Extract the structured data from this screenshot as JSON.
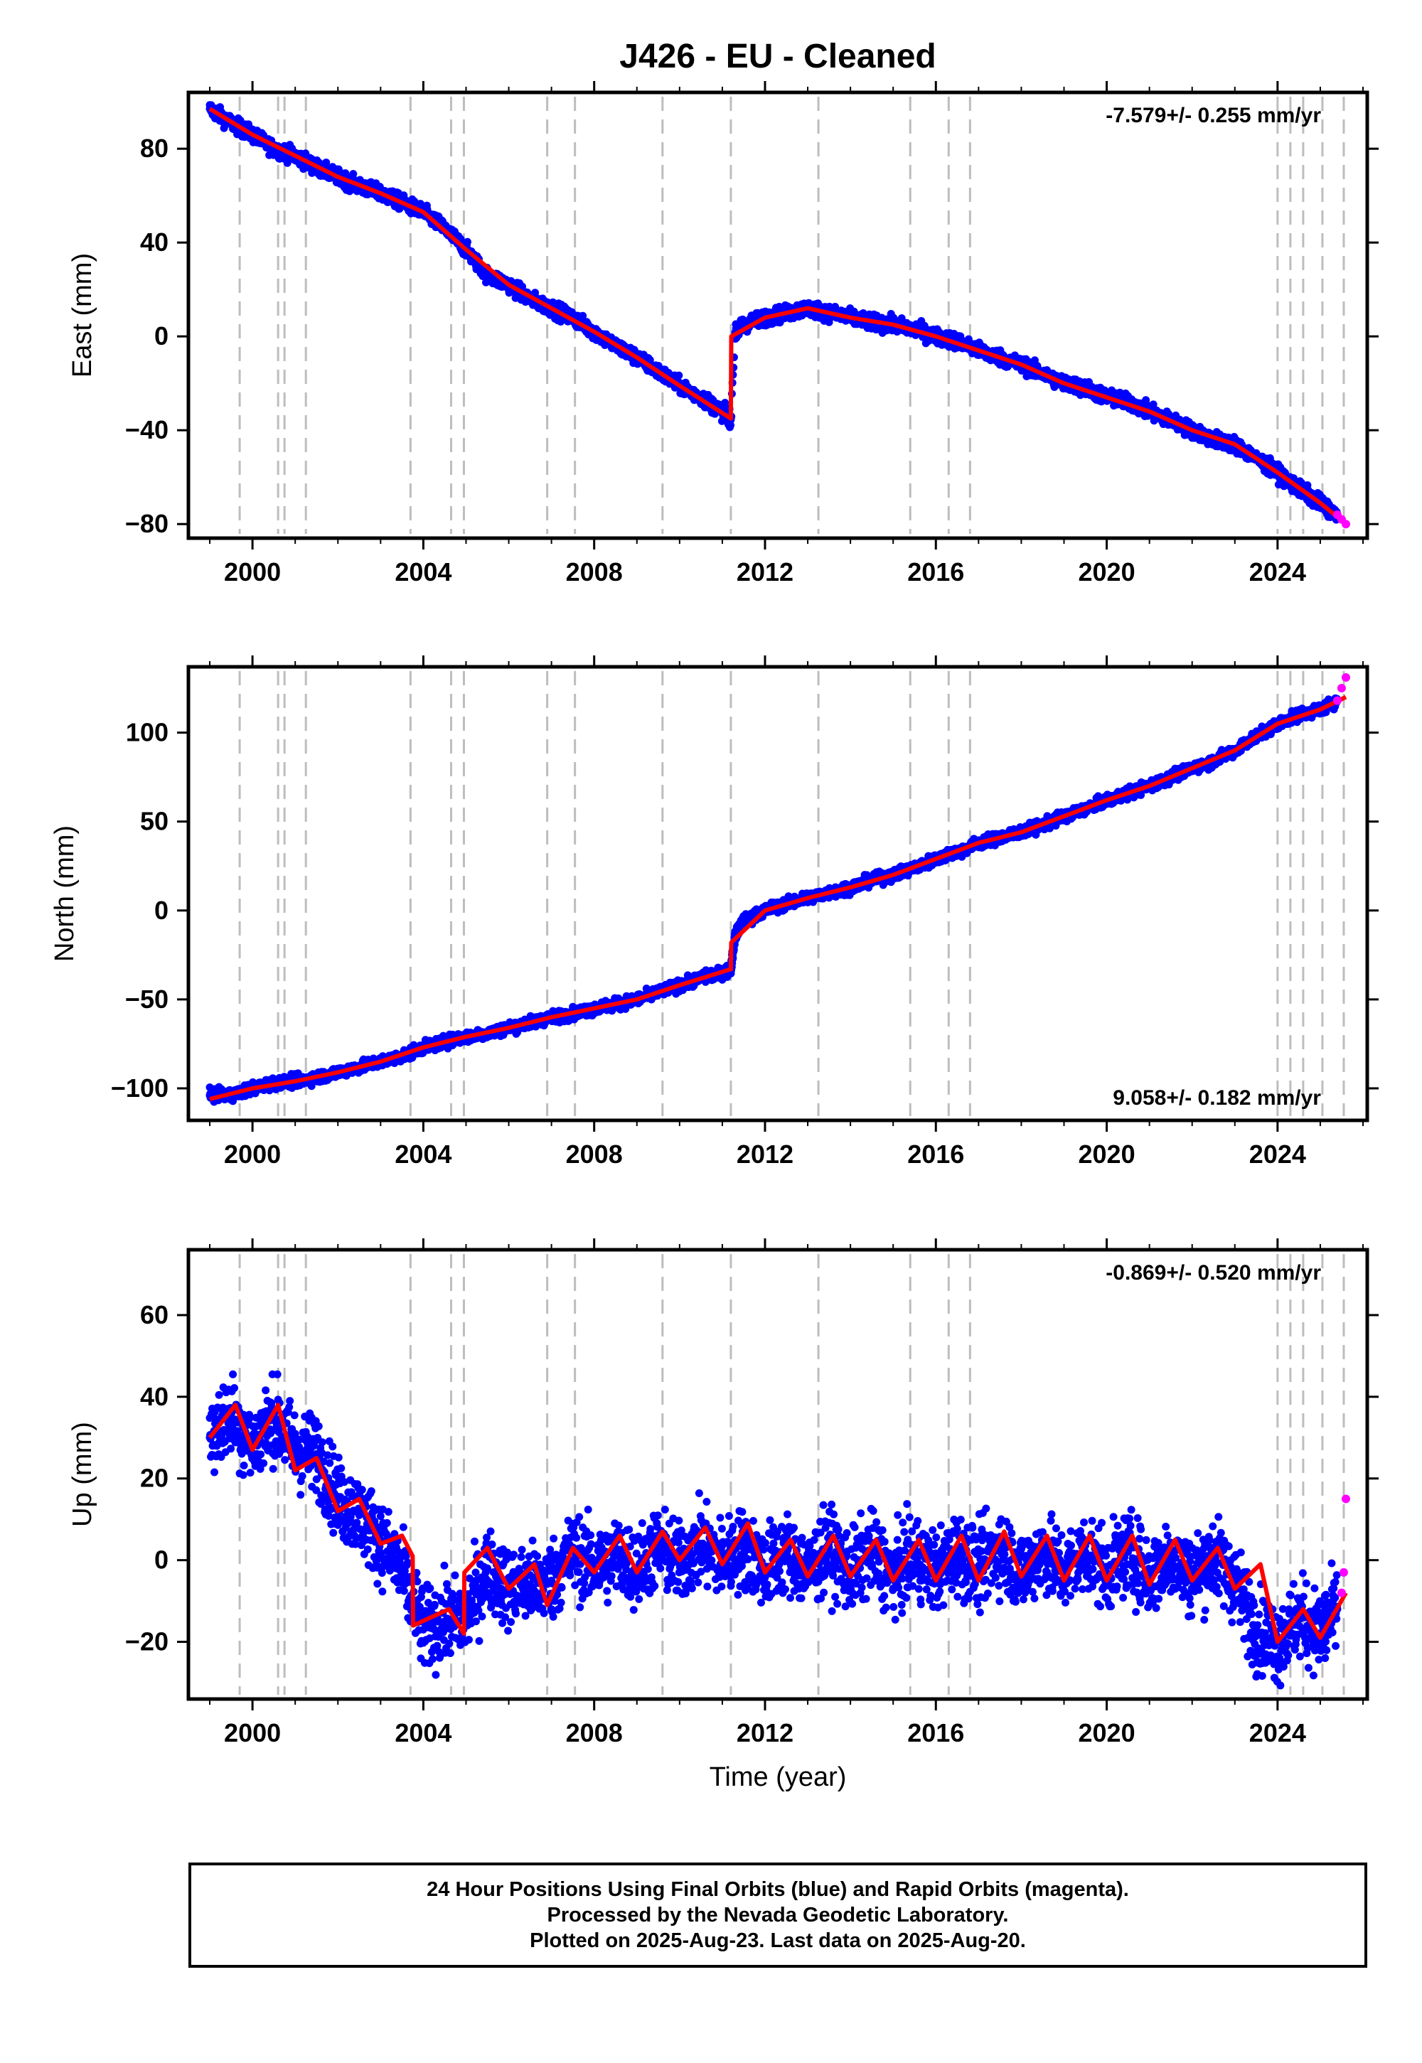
{
  "chart_data": [
    {
      "type": "scatter",
      "title": "J426  - EU - Cleaned",
      "ylabel": "East (mm)",
      "xlabel": "",
      "xlim": [
        1998.5,
        2026.1
      ],
      "ylim": [
        -86,
        104
      ],
      "xticks": [
        2000,
        2004,
        2008,
        2012,
        2016,
        2020,
        2024
      ],
      "yticks": [
        -80,
        -40,
        0,
        40,
        80
      ],
      "ytick_labels": [
        "−80",
        "−40",
        "0",
        "40",
        "80"
      ],
      "rate_label": "-7.579+/- 0.255 mm/yr",
      "rate_position": "top-right",
      "series": [
        {
          "name": "Final Orbits",
          "color": "#0000ff",
          "x": [
            1999.0,
            1999.5,
            2000.0,
            2000.5,
            2001.0,
            2001.5,
            2002.0,
            2002.5,
            2003.0,
            2003.5,
            2004.0,
            2004.5,
            2005.0,
            2005.5,
            2006.0,
            2006.5,
            2007.0,
            2007.5,
            2008.0,
            2008.5,
            2009.0,
            2009.5,
            2010.0,
            2010.5,
            2011.0,
            2011.2,
            2011.3,
            2011.5,
            2012.0,
            2012.5,
            2013.0,
            2013.5,
            2014.0,
            2014.5,
            2015.0,
            2015.5,
            2016.0,
            2016.5,
            2017.0,
            2017.5,
            2018.0,
            2018.5,
            2019.0,
            2019.5,
            2020.0,
            2020.5,
            2021.0,
            2021.5,
            2022.0,
            2022.5,
            2023.0,
            2023.5,
            2024.0,
            2024.5,
            2025.0,
            2025.4
          ],
          "y": [
            97,
            91,
            86,
            80,
            77,
            72,
            68,
            64,
            61,
            57,
            53,
            46,
            37,
            26,
            22,
            16,
            12,
            8,
            2,
            -4,
            -9,
            -15,
            -21,
            -26,
            -32,
            -35,
            1,
            5,
            8,
            10,
            12,
            10,
            8,
            6,
            5,
            3,
            0,
            -2,
            -6,
            -9,
            -12,
            -16,
            -20,
            -22,
            -26,
            -28,
            -32,
            -36,
            -40,
            -44,
            -46,
            -52,
            -58,
            -65,
            -71,
            -76
          ]
        },
        {
          "name": "Rapid Orbits",
          "color": "#ff00ff",
          "x": [
            2025.4,
            2025.5,
            2025.6
          ],
          "y": [
            -76,
            -78,
            -80
          ]
        },
        {
          "name": "Model",
          "color": "#ff0000",
          "x": [
            1999.0,
            2000.0,
            2001.0,
            2002.0,
            2003.0,
            2004.0,
            2005.0,
            2006.0,
            2007.0,
            2008.0,
            2009.0,
            2010.0,
            2011.2,
            2011.21,
            2012.0,
            2013.0,
            2014.0,
            2015.0,
            2016.0,
            2017.0,
            2018.0,
            2019.0,
            2020.0,
            2021.0,
            2022.0,
            2023.0,
            2024.0,
            2025.0,
            2025.6
          ],
          "y": [
            97,
            86,
            77,
            68,
            61,
            53,
            37,
            22,
            12,
            2,
            -9,
            -21,
            -35,
            0,
            8,
            12,
            8,
            5,
            0,
            -6,
            -12,
            -20,
            -26,
            -32,
            -40,
            -46,
            -58,
            -71,
            -80
          ]
        }
      ],
      "event_years": [
        1999.7,
        2000.6,
        2000.75,
        2001.25,
        2003.7,
        2004.65,
        2004.95,
        2006.9,
        2007.55,
        2009.6,
        2011.2,
        2013.25,
        2015.4,
        2016.3,
        2016.8,
        2024.0,
        2024.3,
        2024.6,
        2025.05,
        2025.55
      ]
    },
    {
      "type": "scatter",
      "ylabel": "North (mm)",
      "xlabel": "",
      "xlim": [
        1998.5,
        2026.1
      ],
      "ylim": [
        -118,
        137
      ],
      "xticks": [
        2000,
        2004,
        2008,
        2012,
        2016,
        2020,
        2024
      ],
      "yticks": [
        -100,
        -50,
        0,
        50,
        100
      ],
      "ytick_labels": [
        "−100",
        "−50",
        "0",
        "50",
        "100"
      ],
      "rate_label": "9.058+/- 0.182 mm/yr",
      "rate_position": "bottom-right",
      "series": [
        {
          "name": "Final Orbits",
          "color": "#0000ff",
          "x": [
            1999.0,
            1999.5,
            2000.0,
            2000.5,
            2001.0,
            2001.5,
            2002.0,
            2002.5,
            2003.0,
            2003.5,
            2004.0,
            2004.5,
            2005.0,
            2005.5,
            2006.0,
            2006.5,
            2007.0,
            2007.5,
            2008.0,
            2008.5,
            2009.0,
            2009.5,
            2010.0,
            2010.5,
            2011.0,
            2011.2,
            2011.3,
            2011.5,
            2012.0,
            2012.5,
            2013.0,
            2013.5,
            2014.0,
            2014.5,
            2015.0,
            2015.5,
            2016.0,
            2016.5,
            2017.0,
            2017.5,
            2018.0,
            2018.5,
            2019.0,
            2019.5,
            2020.0,
            2020.5,
            2021.0,
            2021.5,
            2022.0,
            2022.5,
            2023.0,
            2023.5,
            2024.0,
            2024.5,
            2025.0,
            2025.4
          ],
          "y": [
            -104,
            -104,
            -100,
            -97,
            -96,
            -94,
            -91,
            -88,
            -85,
            -82,
            -77,
            -74,
            -71,
            -69,
            -66,
            -63,
            -60,
            -58,
            -55,
            -53,
            -50,
            -46,
            -42,
            -38,
            -35,
            -33,
            -14,
            -6,
            0,
            4,
            7,
            10,
            13,
            17,
            20,
            24,
            29,
            33,
            38,
            41,
            44,
            48,
            53,
            57,
            62,
            66,
            70,
            75,
            80,
            84,
            90,
            98,
            105,
            110,
            113,
            118
          ]
        },
        {
          "name": "Rapid Orbits",
          "color": "#ff00ff",
          "x": [
            2025.4,
            2025.5,
            2025.6
          ],
          "y": [
            118,
            125,
            131
          ]
        },
        {
          "name": "Model",
          "color": "#ff0000",
          "x": [
            1999.0,
            2000.0,
            2001.0,
            2002.0,
            2003.0,
            2004.0,
            2005.0,
            2006.0,
            2007.0,
            2008.0,
            2009.0,
            2010.0,
            2011.2,
            2011.21,
            2012.0,
            2013.0,
            2014.0,
            2015.0,
            2016.0,
            2017.0,
            2018.0,
            2019.0,
            2020.0,
            2021.0,
            2022.0,
            2023.0,
            2024.0,
            2025.0,
            2025.6
          ],
          "y": [
            -106,
            -100,
            -96,
            -91,
            -85,
            -77,
            -71,
            -66,
            -60,
            -55,
            -50,
            -42,
            -33,
            -18,
            0,
            7,
            13,
            20,
            29,
            38,
            44,
            53,
            62,
            70,
            80,
            90,
            105,
            113,
            120
          ]
        }
      ],
      "event_years": [
        1999.7,
        2000.6,
        2000.75,
        2001.25,
        2003.7,
        2004.65,
        2004.95,
        2006.9,
        2007.55,
        2009.6,
        2011.2,
        2013.25,
        2015.4,
        2016.3,
        2016.8,
        2024.0,
        2024.3,
        2024.6,
        2025.05,
        2025.55
      ]
    },
    {
      "type": "scatter",
      "ylabel": "Up (mm)",
      "xlabel": "Time (year)",
      "xlim": [
        1998.5,
        2026.1
      ],
      "ylim": [
        -34,
        76
      ],
      "xticks": [
        2000,
        2004,
        2008,
        2012,
        2016,
        2020,
        2024
      ],
      "yticks": [
        -20,
        0,
        20,
        40,
        60
      ],
      "ytick_labels": [
        "−20",
        "0",
        "20",
        "40",
        "60"
      ],
      "rate_label": "-0.869+/- 0.520 mm/yr",
      "rate_position": "top-right",
      "series": [
        {
          "name": "Final Orbits",
          "color": "#0000ff",
          "x": [
            1999.0,
            1999.5,
            2000.0,
            2000.5,
            2001.0,
            2001.5,
            2002.0,
            2002.5,
            2003.0,
            2003.5,
            2004.0,
            2004.5,
            2005.0,
            2005.5,
            2006.0,
            2006.5,
            2007.0,
            2007.5,
            2008.0,
            2008.5,
            2009.0,
            2009.5,
            2010.0,
            2010.5,
            2011.0,
            2011.5,
            2012.0,
            2012.5,
            2013.0,
            2013.5,
            2014.0,
            2014.5,
            2015.0,
            2015.5,
            2016.0,
            2016.5,
            2017.0,
            2017.5,
            2018.0,
            2018.5,
            2019.0,
            2019.5,
            2020.0,
            2020.5,
            2021.0,
            2021.5,
            2022.0,
            2022.5,
            2023.0,
            2023.5,
            2024.0,
            2024.5,
            2025.0,
            2025.4
          ],
          "y": [
            30,
            36,
            28,
            35,
            27,
            26,
            15,
            11,
            5,
            -3,
            -17,
            -15,
            -14,
            -2,
            -7,
            -6,
            -5,
            2,
            -2,
            1,
            -2,
            3,
            -1,
            4,
            0,
            3,
            -2,
            2,
            -3,
            3,
            -3,
            2,
            -4,
            1,
            -3,
            2,
            -2,
            3,
            -3,
            2,
            -3,
            2,
            -3,
            2,
            -4,
            1,
            -4,
            1,
            -5,
            -17,
            -20,
            -14,
            -18,
            -12
          ]
        },
        {
          "name": "Rapid Orbits",
          "color": "#ff00ff",
          "x": [
            2025.5,
            2025.55,
            2025.6
          ],
          "y": [
            -8,
            -3,
            15
          ]
        },
        {
          "name": "Model",
          "color": "#ff0000",
          "x": [
            1999.0,
            1999.6,
            2000.0,
            2000.6,
            2001.0,
            2001.5,
            2002.0,
            2002.5,
            2003.0,
            2003.5,
            2003.75,
            2003.76,
            2004.6,
            2004.95,
            2004.96,
            2005.5,
            2006.0,
            2006.6,
            2006.9,
            2007.5,
            2008.0,
            2008.6,
            2009.0,
            2009.6,
            2010.0,
            2010.6,
            2011.0,
            2011.6,
            2012.0,
            2012.6,
            2013.0,
            2013.6,
            2014.0,
            2014.6,
            2015.0,
            2015.6,
            2016.0,
            2016.6,
            2017.0,
            2017.6,
            2018.0,
            2018.6,
            2019.0,
            2019.6,
            2020.0,
            2020.6,
            2021.0,
            2021.6,
            2022.0,
            2022.6,
            2023.0,
            2023.6,
            2024.0,
            2024.6,
            2025.0,
            2025.6
          ],
          "y": [
            30,
            38,
            27,
            38,
            22,
            25,
            12,
            15,
            4,
            6,
            1,
            -16,
            -12,
            -18,
            -3,
            3,
            -7,
            -1,
            -11,
            3,
            -3,
            6,
            -3,
            7,
            0,
            8,
            -1,
            9,
            -3,
            5,
            -4,
            6,
            -4,
            5,
            -5,
            5,
            -5,
            6,
            -5,
            7,
            -4,
            6,
            -5,
            6,
            -5,
            6,
            -6,
            5,
            -5,
            3,
            -7,
            -1,
            -20,
            -12,
            -19,
            -8
          ]
        }
      ],
      "event_years": [
        1999.7,
        2000.6,
        2000.75,
        2001.25,
        2003.7,
        2004.65,
        2004.95,
        2006.9,
        2007.55,
        2009.6,
        2011.2,
        2013.25,
        2015.4,
        2016.3,
        2016.8,
        2024.0,
        2024.3,
        2024.6,
        2025.05,
        2025.55
      ]
    }
  ],
  "caption": {
    "line1": "24 Hour Positions Using Final Orbits (blue) and Rapid Orbits (magenta).",
    "line2": "Processed by the Nevada Geodetic Laboratory.",
    "line3": "Plotted on 2025-Aug-23. Last data on 2025-Aug-20."
  }
}
